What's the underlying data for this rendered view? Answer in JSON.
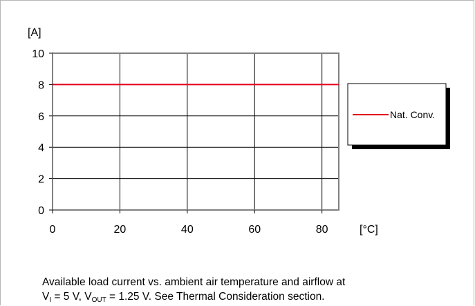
{
  "chart_data": {
    "type": "line",
    "ylabel": "[A]",
    "xlabel": "[°C]",
    "xlim": [
      0,
      85
    ],
    "ylim": [
      0,
      10
    ],
    "x_ticks": [
      "0",
      "20",
      "40",
      "60",
      "80"
    ],
    "x_tick_values": [
      0,
      20,
      40,
      60,
      80
    ],
    "y_ticks": [
      "10",
      "8",
      "6",
      "4",
      "2",
      "0"
    ],
    "y_tick_values": [
      10,
      8,
      6,
      4,
      2,
      0
    ],
    "grid": true,
    "legend_position": "right",
    "series": [
      {
        "name": "Nat. Conv.",
        "color": "#e2001a",
        "x": [
          0,
          85
        ],
        "y": [
          8,
          8
        ]
      }
    ]
  },
  "caption": {
    "line1": "Available load current vs. ambient air temperature and airflow at",
    "l2_v": "V",
    "l2_sub_i": "I",
    "l2_mid": " = 5 V, V",
    "l2_sub_out": "OUT",
    "l2_end": " = 1.25 V. See Thermal Consideration section."
  }
}
